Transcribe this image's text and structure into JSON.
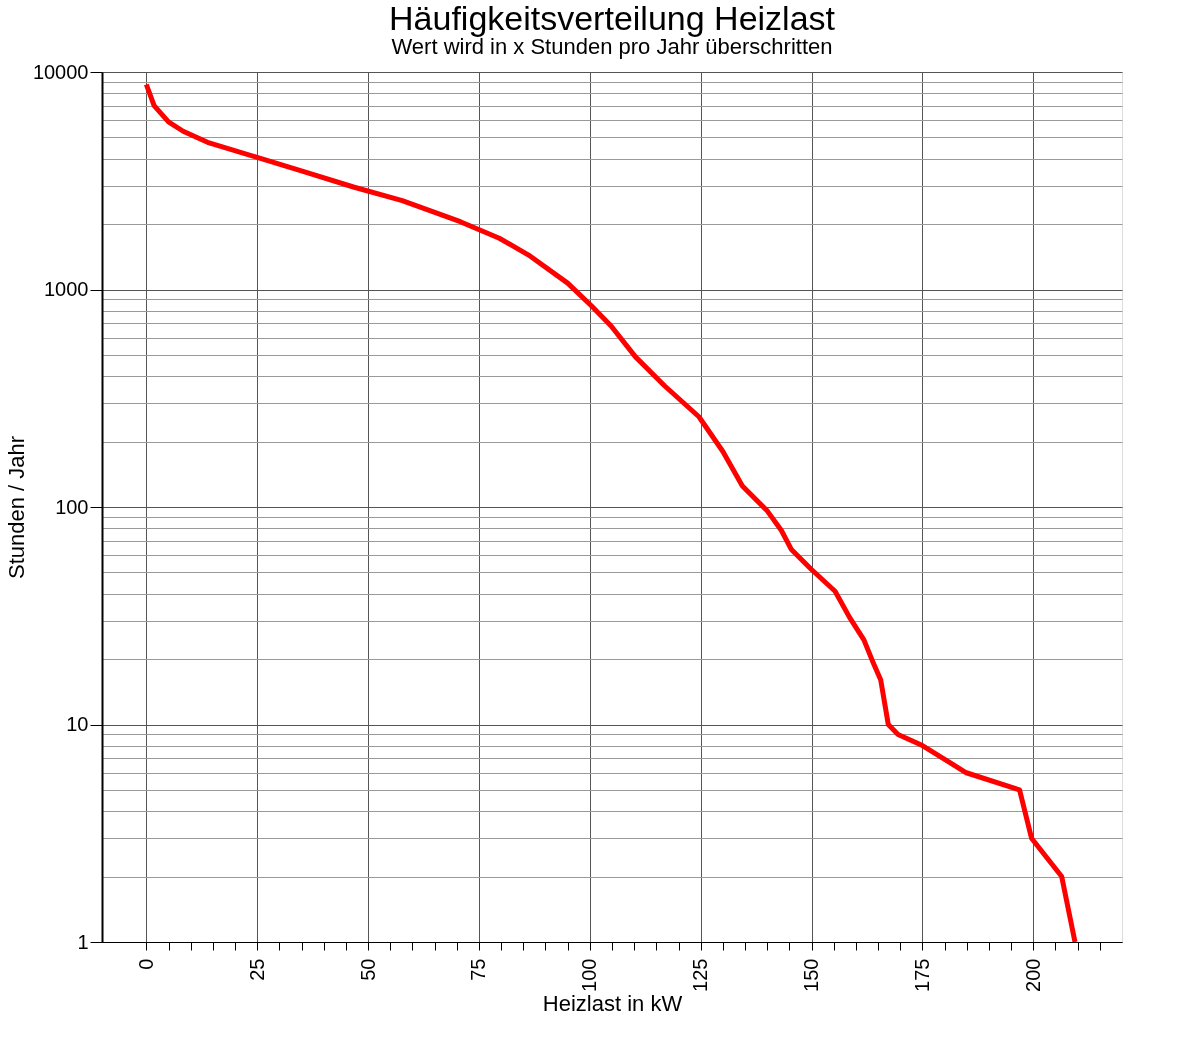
{
  "chart_data": {
    "type": "line",
    "title": "Häufigkeitsverteilung Heizlast",
    "subtitle": "Wert wird in x Stunden pro Jahr überschritten",
    "xlabel": "Heizlast in kW",
    "ylabel": "Stunden / Jahr",
    "x": [
      0,
      1.75,
      5,
      8.3,
      13.8,
      24.8,
      35.7,
      46.7,
      57.7,
      70.8,
      79.6,
      86.2,
      95,
      100.4,
      104.8,
      110.3,
      116.9,
      124.6,
      130,
      134.4,
      140,
      143.2,
      145.4,
      149.8,
      155.3,
      158.6,
      161.8,
      164,
      165.6,
      167.3,
      169.5,
      175,
      184.9,
      196.9,
      199.6,
      206.4,
      209.4
    ],
    "series": [
      {
        "color": "#ff0000",
        "values": [
          8760,
          7000,
          5900,
          5340,
          4750,
          4060,
          3470,
          2960,
          2560,
          2050,
          1720,
          1440,
          1070,
          840,
          680,
          490,
          360,
          260,
          180,
          125,
          96,
          78,
          64,
          52,
          41,
          31,
          24.5,
          19,
          16,
          10,
          9,
          8,
          6,
          5,
          3,
          2,
          1
        ]
      }
    ],
    "log": "y",
    "xlim": [
      -10,
      220
    ],
    "ylim": [
      1,
      10000
    ],
    "xticks": [
      0,
      {
        "value": 5,
        "label": null
      },
      {
        "value": 10,
        "label": null
      },
      {
        "value": 15,
        "label": null
      },
      {
        "value": 20,
        "label": null
      },
      25,
      {
        "value": 30,
        "label": null
      },
      {
        "value": 35,
        "label": null
      },
      {
        "value": 40,
        "label": null
      },
      {
        "value": 45,
        "label": null
      },
      50,
      {
        "value": 55,
        "label": null
      },
      {
        "value": 60,
        "label": null
      },
      {
        "value": 65,
        "label": null
      },
      {
        "value": 70,
        "label": null
      },
      75,
      {
        "value": 80,
        "label": null
      },
      {
        "value": 85,
        "label": null
      },
      {
        "value": 90,
        "label": null
      },
      {
        "value": 95,
        "label": null
      },
      100,
      {
        "value": 105,
        "label": null
      },
      {
        "value": 110,
        "label": null
      },
      {
        "value": 115,
        "label": null
      },
      {
        "value": 120,
        "label": null
      },
      125,
      {
        "value": 130,
        "label": null
      },
      {
        "value": 135,
        "label": null
      },
      {
        "value": 140,
        "label": null
      },
      {
        "value": 145,
        "label": null
      },
      150,
      {
        "value": 155,
        "label": null
      },
      {
        "value": 160,
        "label": null
      },
      {
        "value": 165,
        "label": null
      },
      {
        "value": 170,
        "label": null
      },
      175,
      {
        "value": 180,
        "label": null
      },
      {
        "value": 185,
        "label": null
      },
      {
        "value": 190,
        "label": null
      },
      {
        "value": 195,
        "label": null
      },
      200,
      {
        "value": 205,
        "label": null
      },
      {
        "value": 210,
        "label": null
      },
      {
        "value": 215,
        "label": null
      }
    ],
    "yticks": [
      1,
      {
        "value": 2,
        "label": null
      },
      {
        "value": 3,
        "label": null
      },
      {
        "value": 4,
        "label": null
      },
      {
        "value": 5,
        "label": null
      },
      {
        "value": 6,
        "label": null
      },
      {
        "value": 7,
        "label": null
      },
      {
        "value": 8,
        "label": null
      },
      {
        "value": 9,
        "label": null
      },
      10,
      {
        "value": 20,
        "label": null
      },
      {
        "value": 30,
        "label": null
      },
      {
        "value": 40,
        "label": null
      },
      {
        "value": 50,
        "label": null
      },
      {
        "value": 60,
        "label": null
      },
      {
        "value": 70,
        "label": null
      },
      {
        "value": 80,
        "label": null
      },
      {
        "value": 90,
        "label": null
      },
      100,
      {
        "value": 200,
        "label": null
      },
      {
        "value": 300,
        "label": null
      },
      {
        "value": 400,
        "label": null
      },
      {
        "value": 500,
        "label": null
      },
      {
        "value": 600,
        "label": null
      },
      {
        "value": 700,
        "label": null
      },
      {
        "value": 800,
        "label": null
      },
      {
        "value": 900,
        "label": null
      },
      1000,
      {
        "value": 2000,
        "label": null
      },
      {
        "value": 3000,
        "label": null
      },
      {
        "value": 4000,
        "label": null
      },
      {
        "value": 5000,
        "label": null
      },
      {
        "value": 6000,
        "label": null
      },
      {
        "value": 7000,
        "label": null
      },
      {
        "value": 8000,
        "label": null
      },
      {
        "value": 9000,
        "label": null
      },
      10000
    ],
    "grid": true,
    "marker": "none",
    "line_style": "solid"
  }
}
